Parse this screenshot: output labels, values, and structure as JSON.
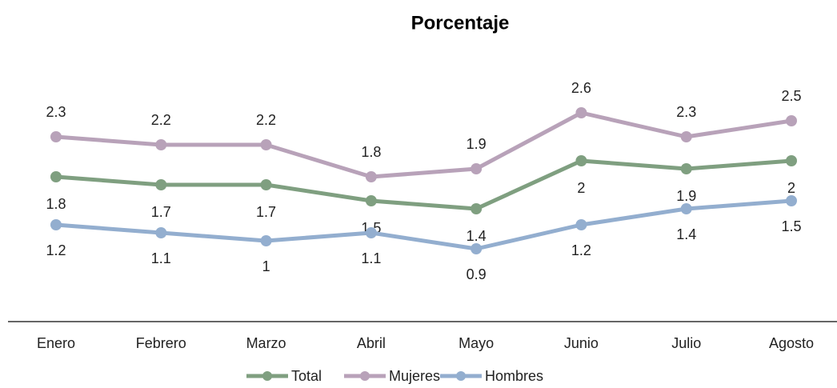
{
  "chart_data": {
    "type": "line",
    "title": "Porcentaje",
    "categories": [
      "Enero",
      "Febrero",
      "Marzo",
      "Abril",
      "Mayo",
      "Junio",
      "Julio",
      "Agosto"
    ],
    "series": [
      {
        "name": "Total",
        "color": "#7f9f80",
        "values": [
          1.8,
          1.7,
          1.7,
          1.5,
          1.4,
          2.0,
          1.9,
          2.0
        ]
      },
      {
        "name": "Mujeres",
        "color": "#b8a2b9",
        "values": [
          2.3,
          2.2,
          2.2,
          1.8,
          1.9,
          2.6,
          2.3,
          2.5
        ]
      },
      {
        "name": "Hombres",
        "color": "#93aecf",
        "values": [
          1.2,
          1.1,
          1.0,
          1.1,
          0.9,
          1.2,
          1.4,
          1.5
        ]
      }
    ]
  }
}
